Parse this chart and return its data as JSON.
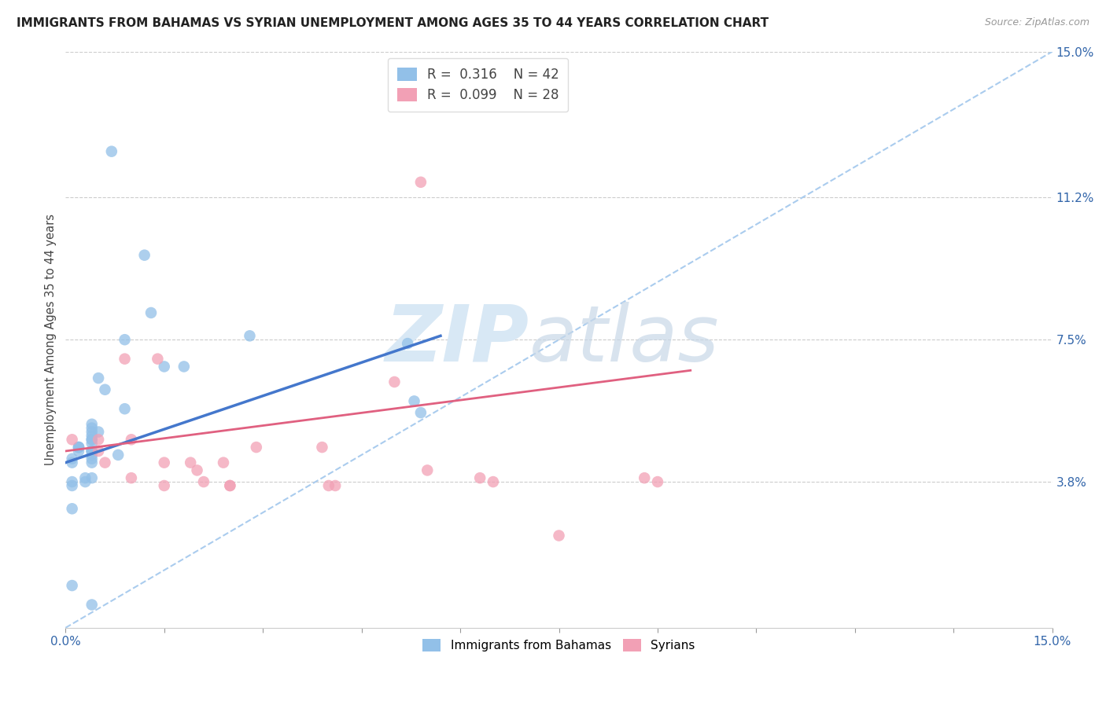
{
  "title": "IMMIGRANTS FROM BAHAMAS VS SYRIAN UNEMPLOYMENT AMONG AGES 35 TO 44 YEARS CORRELATION CHART",
  "source": "Source: ZipAtlas.com",
  "ylabel": "Unemployment Among Ages 35 to 44 years",
  "xlim": [
    0.0,
    0.15
  ],
  "ylim": [
    0.0,
    0.15
  ],
  "ytick_labels": [
    "3.8%",
    "7.5%",
    "11.2%",
    "15.0%"
  ],
  "ytick_values": [
    0.038,
    0.075,
    0.112,
    0.15
  ],
  "xtick_values": [
    0.0,
    0.015,
    0.03,
    0.045,
    0.06,
    0.075,
    0.09,
    0.105,
    0.12,
    0.135,
    0.15
  ],
  "legend1_r": "0.316",
  "legend1_n": "42",
  "legend2_r": "0.099",
  "legend2_n": "28",
  "blue_color": "#92C0E8",
  "pink_color": "#F2A0B5",
  "blue_line_color": "#4477CC",
  "pink_line_color": "#E06080",
  "dashed_line_color": "#AACCEE",
  "watermark_zip": "ZIP",
  "watermark_atlas": "atlas",
  "blue_scatter_x": [
    0.007,
    0.012,
    0.013,
    0.015,
    0.018,
    0.009,
    0.005,
    0.006,
    0.009,
    0.004,
    0.004,
    0.004,
    0.005,
    0.004,
    0.004,
    0.004,
    0.004,
    0.002,
    0.002,
    0.002,
    0.002,
    0.004,
    0.004,
    0.004,
    0.004,
    0.008,
    0.004,
    0.001,
    0.001,
    0.004,
    0.004,
    0.003,
    0.003,
    0.001,
    0.001,
    0.001,
    0.001,
    0.028,
    0.052,
    0.053,
    0.054,
    0.004
  ],
  "blue_scatter_y": [
    0.124,
    0.097,
    0.082,
    0.068,
    0.068,
    0.075,
    0.065,
    0.062,
    0.057,
    0.053,
    0.052,
    0.051,
    0.051,
    0.05,
    0.049,
    0.049,
    0.048,
    0.047,
    0.047,
    0.047,
    0.046,
    0.046,
    0.046,
    0.046,
    0.045,
    0.045,
    0.044,
    0.044,
    0.043,
    0.043,
    0.039,
    0.039,
    0.038,
    0.038,
    0.037,
    0.031,
    0.011,
    0.076,
    0.074,
    0.059,
    0.056,
    0.006
  ],
  "pink_scatter_x": [
    0.001,
    0.005,
    0.005,
    0.006,
    0.009,
    0.01,
    0.01,
    0.014,
    0.015,
    0.015,
    0.019,
    0.02,
    0.021,
    0.024,
    0.025,
    0.025,
    0.029,
    0.039,
    0.04,
    0.041,
    0.05,
    0.054,
    0.055,
    0.063,
    0.065,
    0.075,
    0.088,
    0.09
  ],
  "pink_scatter_y": [
    0.049,
    0.049,
    0.046,
    0.043,
    0.07,
    0.049,
    0.039,
    0.07,
    0.043,
    0.037,
    0.043,
    0.041,
    0.038,
    0.043,
    0.037,
    0.037,
    0.047,
    0.047,
    0.037,
    0.037,
    0.064,
    0.116,
    0.041,
    0.039,
    0.038,
    0.024,
    0.039,
    0.038
  ],
  "blue_trend_x": [
    0.0,
    0.057
  ],
  "blue_trend_y": [
    0.043,
    0.076
  ],
  "pink_trend_x": [
    0.0,
    0.095
  ],
  "pink_trend_y": [
    0.046,
    0.067
  ],
  "diag_line_x": [
    0.0,
    0.15
  ],
  "diag_line_y": [
    0.0,
    0.15
  ],
  "bg_color": "#FFFFFF",
  "grid_color": "#CCCCCC"
}
